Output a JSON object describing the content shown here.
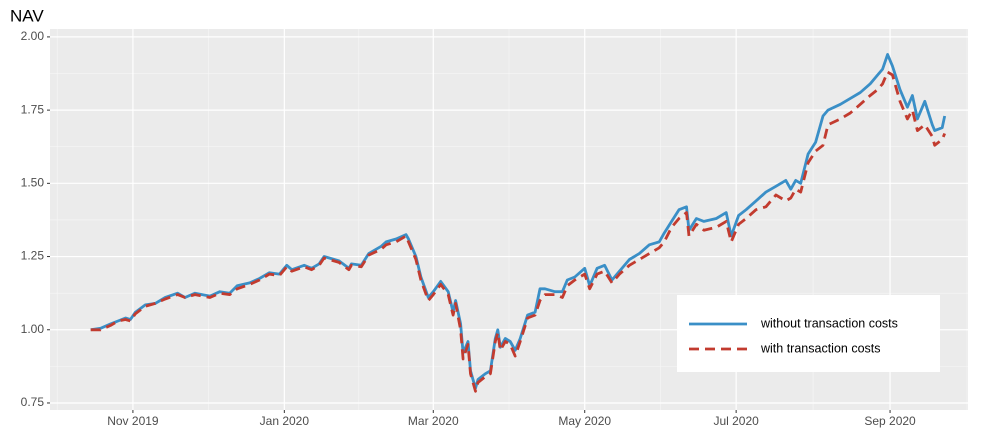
{
  "chart_data": {
    "type": "line",
    "title": "NAV",
    "x": [
      -17,
      -13,
      -9,
      -6,
      -3,
      -1,
      1,
      5,
      9,
      13,
      18,
      21,
      25,
      31,
      35,
      39,
      42,
      47,
      51,
      55,
      59,
      62,
      64,
      69,
      72,
      75,
      77,
      83,
      87,
      88,
      92,
      95,
      100,
      102,
      106,
      110,
      111,
      114,
      116,
      119,
      121,
      124,
      127,
      129,
      130,
      132,
      133,
      135,
      136,
      138,
      139,
      142,
      144,
      146,
      147,
      148,
      150,
      152,
      154,
      156,
      159,
      162,
      164,
      166,
      170,
      173,
      175,
      178,
      182,
      184,
      187,
      190,
      193,
      196,
      200,
      204,
      208,
      212,
      214,
      217,
      220,
      223,
      224,
      227,
      230,
      235,
      239,
      241,
      244,
      247,
      251,
      255,
      259,
      263,
      265,
      267,
      269,
      272,
      275,
      278,
      280,
      285,
      289,
      293,
      297,
      300,
      302,
      304,
      306,
      309,
      312,
      314,
      316,
      319,
      322,
      323,
      326,
      327
    ],
    "series": [
      {
        "name": "without transaction costs",
        "color": "#3a8fc7",
        "linestyle": "solid",
        "values": [
          1.0,
          1.005,
          1.02,
          1.03,
          1.04,
          1.035,
          1.06,
          1.085,
          1.09,
          1.11,
          1.125,
          1.11,
          1.125,
          1.115,
          1.13,
          1.125,
          1.15,
          1.16,
          1.175,
          1.195,
          1.19,
          1.22,
          1.205,
          1.22,
          1.21,
          1.225,
          1.25,
          1.235,
          1.21,
          1.225,
          1.22,
          1.26,
          1.285,
          1.3,
          1.31,
          1.325,
          1.31,
          1.25,
          1.18,
          1.11,
          1.13,
          1.165,
          1.13,
          1.06,
          1.1,
          1.02,
          0.92,
          0.96,
          0.86,
          0.8,
          0.83,
          0.85,
          0.86,
          0.97,
          1.0,
          0.94,
          0.97,
          0.96,
          0.93,
          0.97,
          1.05,
          1.06,
          1.14,
          1.14,
          1.13,
          1.13,
          1.17,
          1.18,
          1.21,
          1.15,
          1.21,
          1.22,
          1.17,
          1.2,
          1.24,
          1.26,
          1.29,
          1.3,
          1.33,
          1.37,
          1.41,
          1.42,
          1.34,
          1.38,
          1.37,
          1.38,
          1.4,
          1.32,
          1.39,
          1.41,
          1.44,
          1.47,
          1.49,
          1.51,
          1.48,
          1.51,
          1.5,
          1.6,
          1.64,
          1.73,
          1.75,
          1.77,
          1.79,
          1.81,
          1.84,
          1.87,
          1.89,
          1.94,
          1.9,
          1.82,
          1.76,
          1.8,
          1.72,
          1.78,
          1.7,
          1.68,
          1.69,
          1.73
        ]
      },
      {
        "name": "with transaction costs",
        "color": "#c23b2f",
        "linestyle": "dashed",
        "values": [
          1.0,
          1.0,
          1.015,
          1.03,
          1.035,
          1.03,
          1.055,
          1.08,
          1.09,
          1.105,
          1.12,
          1.11,
          1.12,
          1.11,
          1.125,
          1.12,
          1.14,
          1.155,
          1.17,
          1.19,
          1.185,
          1.215,
          1.2,
          1.215,
          1.205,
          1.22,
          1.245,
          1.23,
          1.205,
          1.22,
          1.215,
          1.255,
          1.275,
          1.29,
          1.3,
          1.32,
          1.3,
          1.24,
          1.17,
          1.1,
          1.12,
          1.155,
          1.12,
          1.05,
          1.09,
          1.0,
          0.9,
          0.95,
          0.85,
          0.79,
          0.82,
          0.84,
          0.85,
          0.96,
          0.99,
          0.93,
          0.96,
          0.95,
          0.91,
          0.96,
          1.04,
          1.05,
          1.1,
          1.12,
          1.12,
          1.11,
          1.15,
          1.17,
          1.19,
          1.14,
          1.19,
          1.2,
          1.16,
          1.19,
          1.22,
          1.24,
          1.26,
          1.28,
          1.3,
          1.35,
          1.38,
          1.4,
          1.32,
          1.36,
          1.34,
          1.35,
          1.37,
          1.3,
          1.36,
          1.38,
          1.41,
          1.42,
          1.46,
          1.44,
          1.45,
          1.48,
          1.47,
          1.57,
          1.61,
          1.63,
          1.7,
          1.72,
          1.74,
          1.77,
          1.8,
          1.82,
          1.84,
          1.88,
          1.87,
          1.78,
          1.72,
          1.75,
          1.68,
          1.7,
          1.66,
          1.63,
          1.65,
          1.67
        ]
      }
    ],
    "xlim": [
      -33.4,
      336.4
    ],
    "xticks": [
      {
        "value": 0,
        "label": "Nov 2019"
      },
      {
        "value": 61,
        "label": "Jan 2020"
      },
      {
        "value": 121,
        "label": "Mar 2020"
      },
      {
        "value": 182,
        "label": "May 2020"
      },
      {
        "value": 243,
        "label": "Jul 2020"
      },
      {
        "value": 305,
        "label": "Sep 2020"
      }
    ],
    "ylim": [
      0.726,
      2.027
    ],
    "yticks": [
      {
        "value": 0.75,
        "label": "0.75"
      },
      {
        "value": 1.0,
        "label": "1.00"
      },
      {
        "value": 1.25,
        "label": "1.25"
      },
      {
        "value": 1.5,
        "label": "1.50"
      },
      {
        "value": 1.75,
        "label": "1.75"
      },
      {
        "value": 2.0,
        "label": "2.00"
      }
    ],
    "grid": true,
    "legend": "bottom-right"
  }
}
